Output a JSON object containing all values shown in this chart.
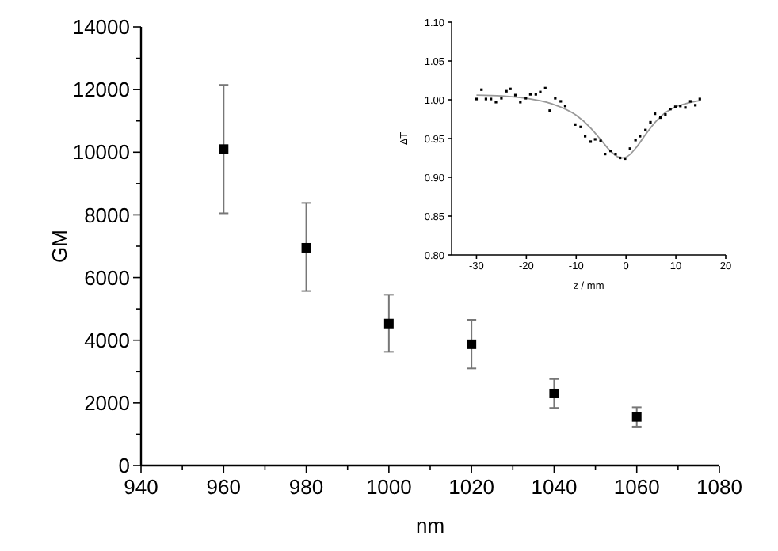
{
  "chart_data": [
    {
      "type": "scatter",
      "xlabel": "nm",
      "ylabel": "GM",
      "marker": "square",
      "xlim": [
        940,
        1080
      ],
      "xticks": [
        940,
        {
          "value": 950,
          "label": null
        },
        960,
        {
          "value": 970,
          "label": null
        },
        980,
        {
          "value": 990,
          "label": null
        },
        1000,
        {
          "value": 1010,
          "label": null
        },
        1020,
        {
          "value": 1030,
          "label": null
        },
        1040,
        {
          "value": 1050,
          "label": null
        },
        1060,
        {
          "value": 1070,
          "label": null
        },
        1080
      ],
      "ylim": [
        0,
        14000
      ],
      "yticks": [
        0,
        {
          "value": 1000,
          "label": null
        },
        2000,
        {
          "value": 3000,
          "label": null
        },
        4000,
        {
          "value": 5000,
          "label": null
        },
        6000,
        {
          "value": 7000,
          "label": null
        },
        8000,
        {
          "value": 9000,
          "label": null
        },
        10000,
        {
          "value": 11000,
          "label": null
        },
        12000,
        {
          "value": 13000,
          "label": null
        },
        14000
      ],
      "series": [
        {
          "color": "#000000",
          "x": [
            960,
            980,
            1000,
            1020,
            1040,
            1060
          ],
          "values": [
            10100,
            6950,
            4530,
            3870,
            2300,
            1550
          ],
          "errors": [
            [
              8050,
              12150
            ],
            [
              5570,
              8380
            ],
            [
              3630,
              5450
            ],
            [
              3100,
              4650
            ],
            [
              1840,
              2760
            ],
            [
              1240,
              1860
            ]
          ]
        }
      ]
    },
    {
      "type": "scatter",
      "xlabel": "z / mm",
      "ylabel": "ΔT",
      "xlim": [
        -35,
        20
      ],
      "xticks": [
        -30,
        -20,
        -10,
        0,
        10,
        20
      ],
      "ylim": [
        0.8,
        1.1
      ],
      "yticks": [
        {
          "value": 0.8,
          "label": "0.80"
        },
        0.85,
        {
          "value": 0.9,
          "label": "0.90"
        },
        0.95,
        {
          "value": 1.0,
          "label": "1.00"
        },
        1.05,
        {
          "value": 1.1,
          "label": "1.10"
        }
      ],
      "series": [
        {
          "color": "#000000",
          "marker": "square",
          "x": [
            -30,
            -29,
            -28.1,
            -27.1,
            -26.1,
            -25,
            -24,
            -23.2,
            -22.2,
            -21.2,
            -20.1,
            -19.2,
            -18.1,
            -17.2,
            -16.2,
            -15.3,
            -14.2,
            -13.1,
            -12.2,
            -10.2,
            -9.1,
            -8.2,
            -7.1,
            -6.2,
            -5.1,
            -4.2,
            -3.1,
            -2.1,
            -1.2,
            -0.2,
            0.8,
            1.9,
            2.8,
            3.9,
            4.9,
            5.8,
            6.9,
            7.9,
            8.9,
            9.9,
            10.9,
            11.9,
            12.9,
            13.9,
            14.8
          ],
          "values": [
            1.001,
            1.013,
            1.001,
            1.001,
            0.997,
            1.002,
            1.011,
            1.014,
            1.006,
            0.997,
            1.002,
            1.007,
            1.007,
            1.01,
            1.015,
            0.986,
            1.002,
            0.998,
            0.992,
            0.968,
            0.965,
            0.953,
            0.946,
            0.949,
            0.947,
            0.93,
            0.934,
            0.93,
            0.925,
            0.924,
            0.937,
            0.948,
            0.953,
            0.961,
            0.971,
            0.982,
            0.977,
            0.981,
            0.988,
            0.991,
            0.992,
            0.99,
            0.998,
            0.993,
            1.001
          ]
        },
        {
          "type": "line",
          "color": "#999999",
          "x": [
            -30,
            -25,
            -20,
            -15,
            -10,
            -7,
            -5,
            -3,
            -1,
            0,
            2,
            4,
            6,
            8,
            10,
            12,
            15
          ],
          "values": [
            1.006,
            1.005,
            1.002,
            0.995,
            0.98,
            0.963,
            0.948,
            0.933,
            0.925,
            0.926,
            0.938,
            0.956,
            0.972,
            0.984,
            0.991,
            0.995,
            0.999
          ]
        }
      ]
    }
  ]
}
